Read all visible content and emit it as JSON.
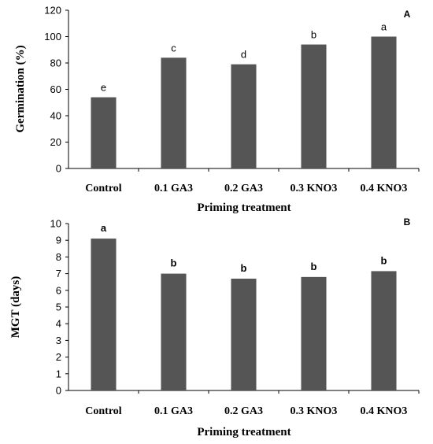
{
  "chart_data": [
    {
      "type": "bar",
      "panel_label": "A",
      "categories": [
        "Control",
        "0.1 GA3",
        "0.2 GA3",
        "0.3 KNO3",
        "0.4 KNO3"
      ],
      "values": [
        54,
        84,
        79,
        94,
        100
      ],
      "letters": [
        "e",
        "c",
        "d",
        "b",
        "a"
      ],
      "xlabel": "Priming treatment",
      "ylabel": "Germination  (%)",
      "ylim": [
        0,
        120
      ],
      "yticks": [
        "0",
        "20",
        "40",
        "60",
        "80",
        "100",
        "120"
      ],
      "bar_color": "#555555",
      "grid": false
    },
    {
      "type": "bar",
      "panel_label": "B",
      "categories": [
        "Control",
        "0.1 GA3",
        "0.2 GA3",
        "0.3 KNO3",
        "0.4 KNO3"
      ],
      "values": [
        9.1,
        7.0,
        6.7,
        6.8,
        7.15
      ],
      "letters": [
        "a",
        "b",
        "b",
        "b",
        "b"
      ],
      "xlabel": "Priming treatment",
      "ylabel": "MGT (days)",
      "ylim": [
        0,
        10
      ],
      "yticks": [
        "0",
        "1",
        "2",
        "3",
        "4",
        "5",
        "6",
        "7",
        "8",
        "9",
        "10"
      ],
      "bar_color": "#555555",
      "grid": false
    }
  ]
}
